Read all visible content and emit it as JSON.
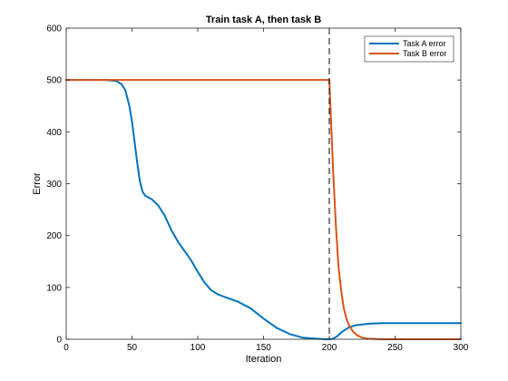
{
  "chart_data": {
    "type": "line",
    "title": "Train task A, then task B",
    "xlabel": "Iteration",
    "ylabel": "Error",
    "xlim": [
      0,
      300
    ],
    "ylim": [
      0,
      600
    ],
    "xticks": [
      "0",
      "50",
      "100",
      "150",
      "200",
      "250",
      "300"
    ],
    "yticks": [
      "0",
      "100",
      "200",
      "300",
      "400",
      "500",
      "600"
    ],
    "grid": false,
    "legend_position": "top-right",
    "annotations": [
      {
        "type": "vertical-dashed-line",
        "x": 200
      }
    ],
    "series": [
      {
        "name": "Task A error",
        "color": "#0072BD",
        "x": [
          0,
          30,
          38,
          42,
          45,
          48,
          50,
          52,
          54,
          56,
          58,
          60,
          65,
          70,
          75,
          80,
          85,
          90,
          95,
          100,
          105,
          110,
          115,
          120,
          130,
          140,
          150,
          160,
          170,
          180,
          190,
          198,
          200,
          203,
          206,
          210,
          215,
          220,
          230,
          240,
          250,
          275,
          300
        ],
        "y": [
          500,
          500,
          498,
          492,
          480,
          450,
          420,
          380,
          340,
          305,
          285,
          277,
          270,
          258,
          238,
          210,
          188,
          170,
          152,
          130,
          110,
          95,
          87,
          82,
          73,
          60,
          40,
          22,
          10,
          3,
          1,
          0,
          0,
          1,
          6,
          15,
          23,
          27,
          30,
          31,
          31,
          31,
          31
        ]
      },
      {
        "name": "Task B error",
        "color": "#D95319",
        "x": [
          0,
          50,
          100,
          150,
          199,
          200,
          201,
          203,
          205,
          207,
          209,
          211,
          213,
          215,
          218,
          221,
          225,
          230,
          240,
          250,
          275,
          300
        ],
        "y": [
          500,
          500,
          500,
          500,
          500,
          500,
          440,
          320,
          220,
          140,
          95,
          60,
          40,
          27,
          15,
          8,
          3,
          1,
          0,
          0,
          0,
          0
        ]
      }
    ]
  }
}
